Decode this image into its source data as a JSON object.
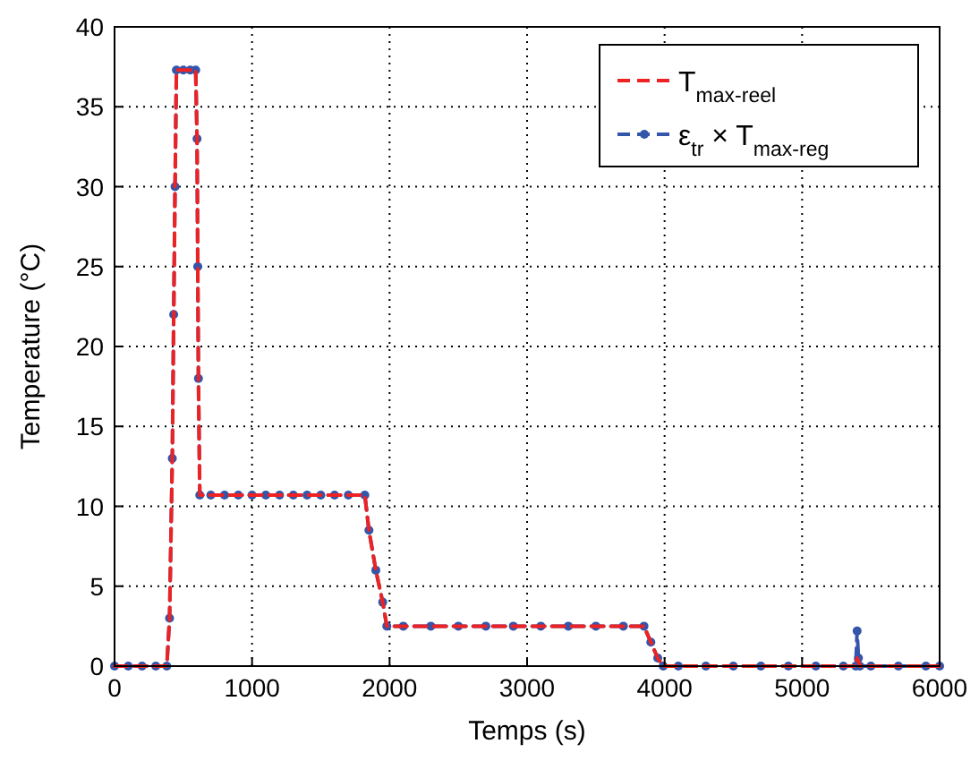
{
  "chart_data": {
    "type": "line",
    "xlabel": "Temps (s)",
    "ylabel": "Temperature (°C)",
    "xlim": [
      0,
      6000
    ],
    "ylim": [
      0,
      40
    ],
    "xticks": [
      0,
      1000,
      2000,
      3000,
      4000,
      5000,
      6000
    ],
    "yticks": [
      0,
      5,
      10,
      15,
      20,
      25,
      30,
      35,
      40
    ],
    "grid": true,
    "legend": "top right",
    "line_style": "dashed",
    "series": [
      {
        "name": "ε$_{tr}$ × T$_{max-reg}$",
        "color": "#3355aa",
        "marker": "circle",
        "x": [
          0,
          100,
          200,
          300,
          380,
          400,
          420,
          430,
          440,
          450,
          500,
          550,
          590,
          600,
          605,
          610,
          620,
          700,
          800,
          900,
          1000,
          1100,
          1200,
          1300,
          1400,
          1500,
          1600,
          1700,
          1820,
          1850,
          1900,
          1950,
          1980,
          2100,
          2300,
          2500,
          2700,
          2900,
          3100,
          3300,
          3500,
          3700,
          3850,
          3900,
          3950,
          3990,
          4100,
          4300,
          4500,
          4700,
          4900,
          5100,
          5300,
          5390,
          5400,
          5410,
          5420,
          5500,
          5700,
          5900,
          6000
        ],
        "values": [
          0,
          0,
          0,
          0,
          0,
          3,
          13,
          22,
          30,
          37.3,
          37.3,
          37.3,
          37.3,
          33,
          25,
          18,
          10.7,
          10.7,
          10.7,
          10.7,
          10.7,
          10.7,
          10.7,
          10.7,
          10.7,
          10.7,
          10.7,
          10.7,
          10.7,
          8.5,
          6,
          4,
          2.5,
          2.5,
          2.5,
          2.5,
          2.5,
          2.5,
          2.5,
          2.5,
          2.5,
          2.5,
          2.5,
          1.5,
          0.5,
          0,
          0,
          0,
          0,
          0,
          0,
          0,
          0,
          0,
          2.2,
          0.5,
          0,
          0,
          0,
          0,
          0
        ]
      },
      {
        "name": "T$_{max-reel}$",
        "color": "#ee2222",
        "marker": "none",
        "x": [
          0,
          380,
          400,
          420,
          440,
          450,
          590,
          600,
          610,
          620,
          1820,
          1850,
          1900,
          1950,
          1980,
          3850,
          3900,
          3950,
          3990,
          5390,
          5400,
          5410,
          5420,
          6000
        ],
        "values": [
          0,
          0,
          3,
          13,
          30,
          37.3,
          37.3,
          33,
          18,
          10.7,
          10.7,
          8.5,
          6,
          4,
          2.5,
          2.5,
          1.5,
          0.5,
          0,
          0,
          0.5,
          0.3,
          0,
          0
        ]
      }
    ]
  }
}
